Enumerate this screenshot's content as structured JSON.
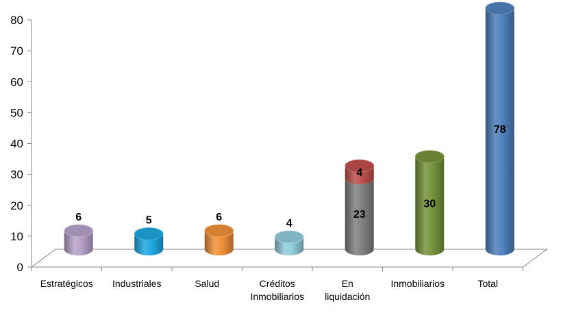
{
  "chart_data": {
    "type": "bar",
    "ylim": [
      0,
      80
    ],
    "yticks": [
      0,
      10,
      20,
      30,
      40,
      50,
      60,
      70,
      80
    ],
    "grid": false,
    "categories": [
      [
        "Estratégicos"
      ],
      [
        "Industriales"
      ],
      [
        "Salud"
      ],
      [
        "Créditos",
        "Inmobiliarios"
      ],
      [
        "En",
        "liquidación"
      ],
      [
        "Inmobiliarios"
      ],
      [
        "Total"
      ]
    ],
    "bars": [
      {
        "segments": [
          {
            "value": 6,
            "label": "6",
            "color": "#b7a2c9"
          }
        ]
      },
      {
        "segments": [
          {
            "value": 5,
            "label": "5",
            "color": "#1fa8e0"
          }
        ]
      },
      {
        "segments": [
          {
            "value": 6,
            "label": "6",
            "color": "#f0913a"
          }
        ]
      },
      {
        "segments": [
          {
            "value": 4,
            "label": "4",
            "color": "#92cddc"
          }
        ]
      },
      {
        "segments": [
          {
            "value": 23,
            "label": "23",
            "color": "#808080"
          },
          {
            "value": 4,
            "label": "4",
            "color": "#c0504d"
          }
        ]
      },
      {
        "segments": [
          {
            "value": 30,
            "label": "30",
            "color": "#77933c"
          }
        ]
      },
      {
        "segments": [
          {
            "value": 78,
            "label": "78",
            "color": "#4f81bd"
          }
        ]
      }
    ]
  }
}
